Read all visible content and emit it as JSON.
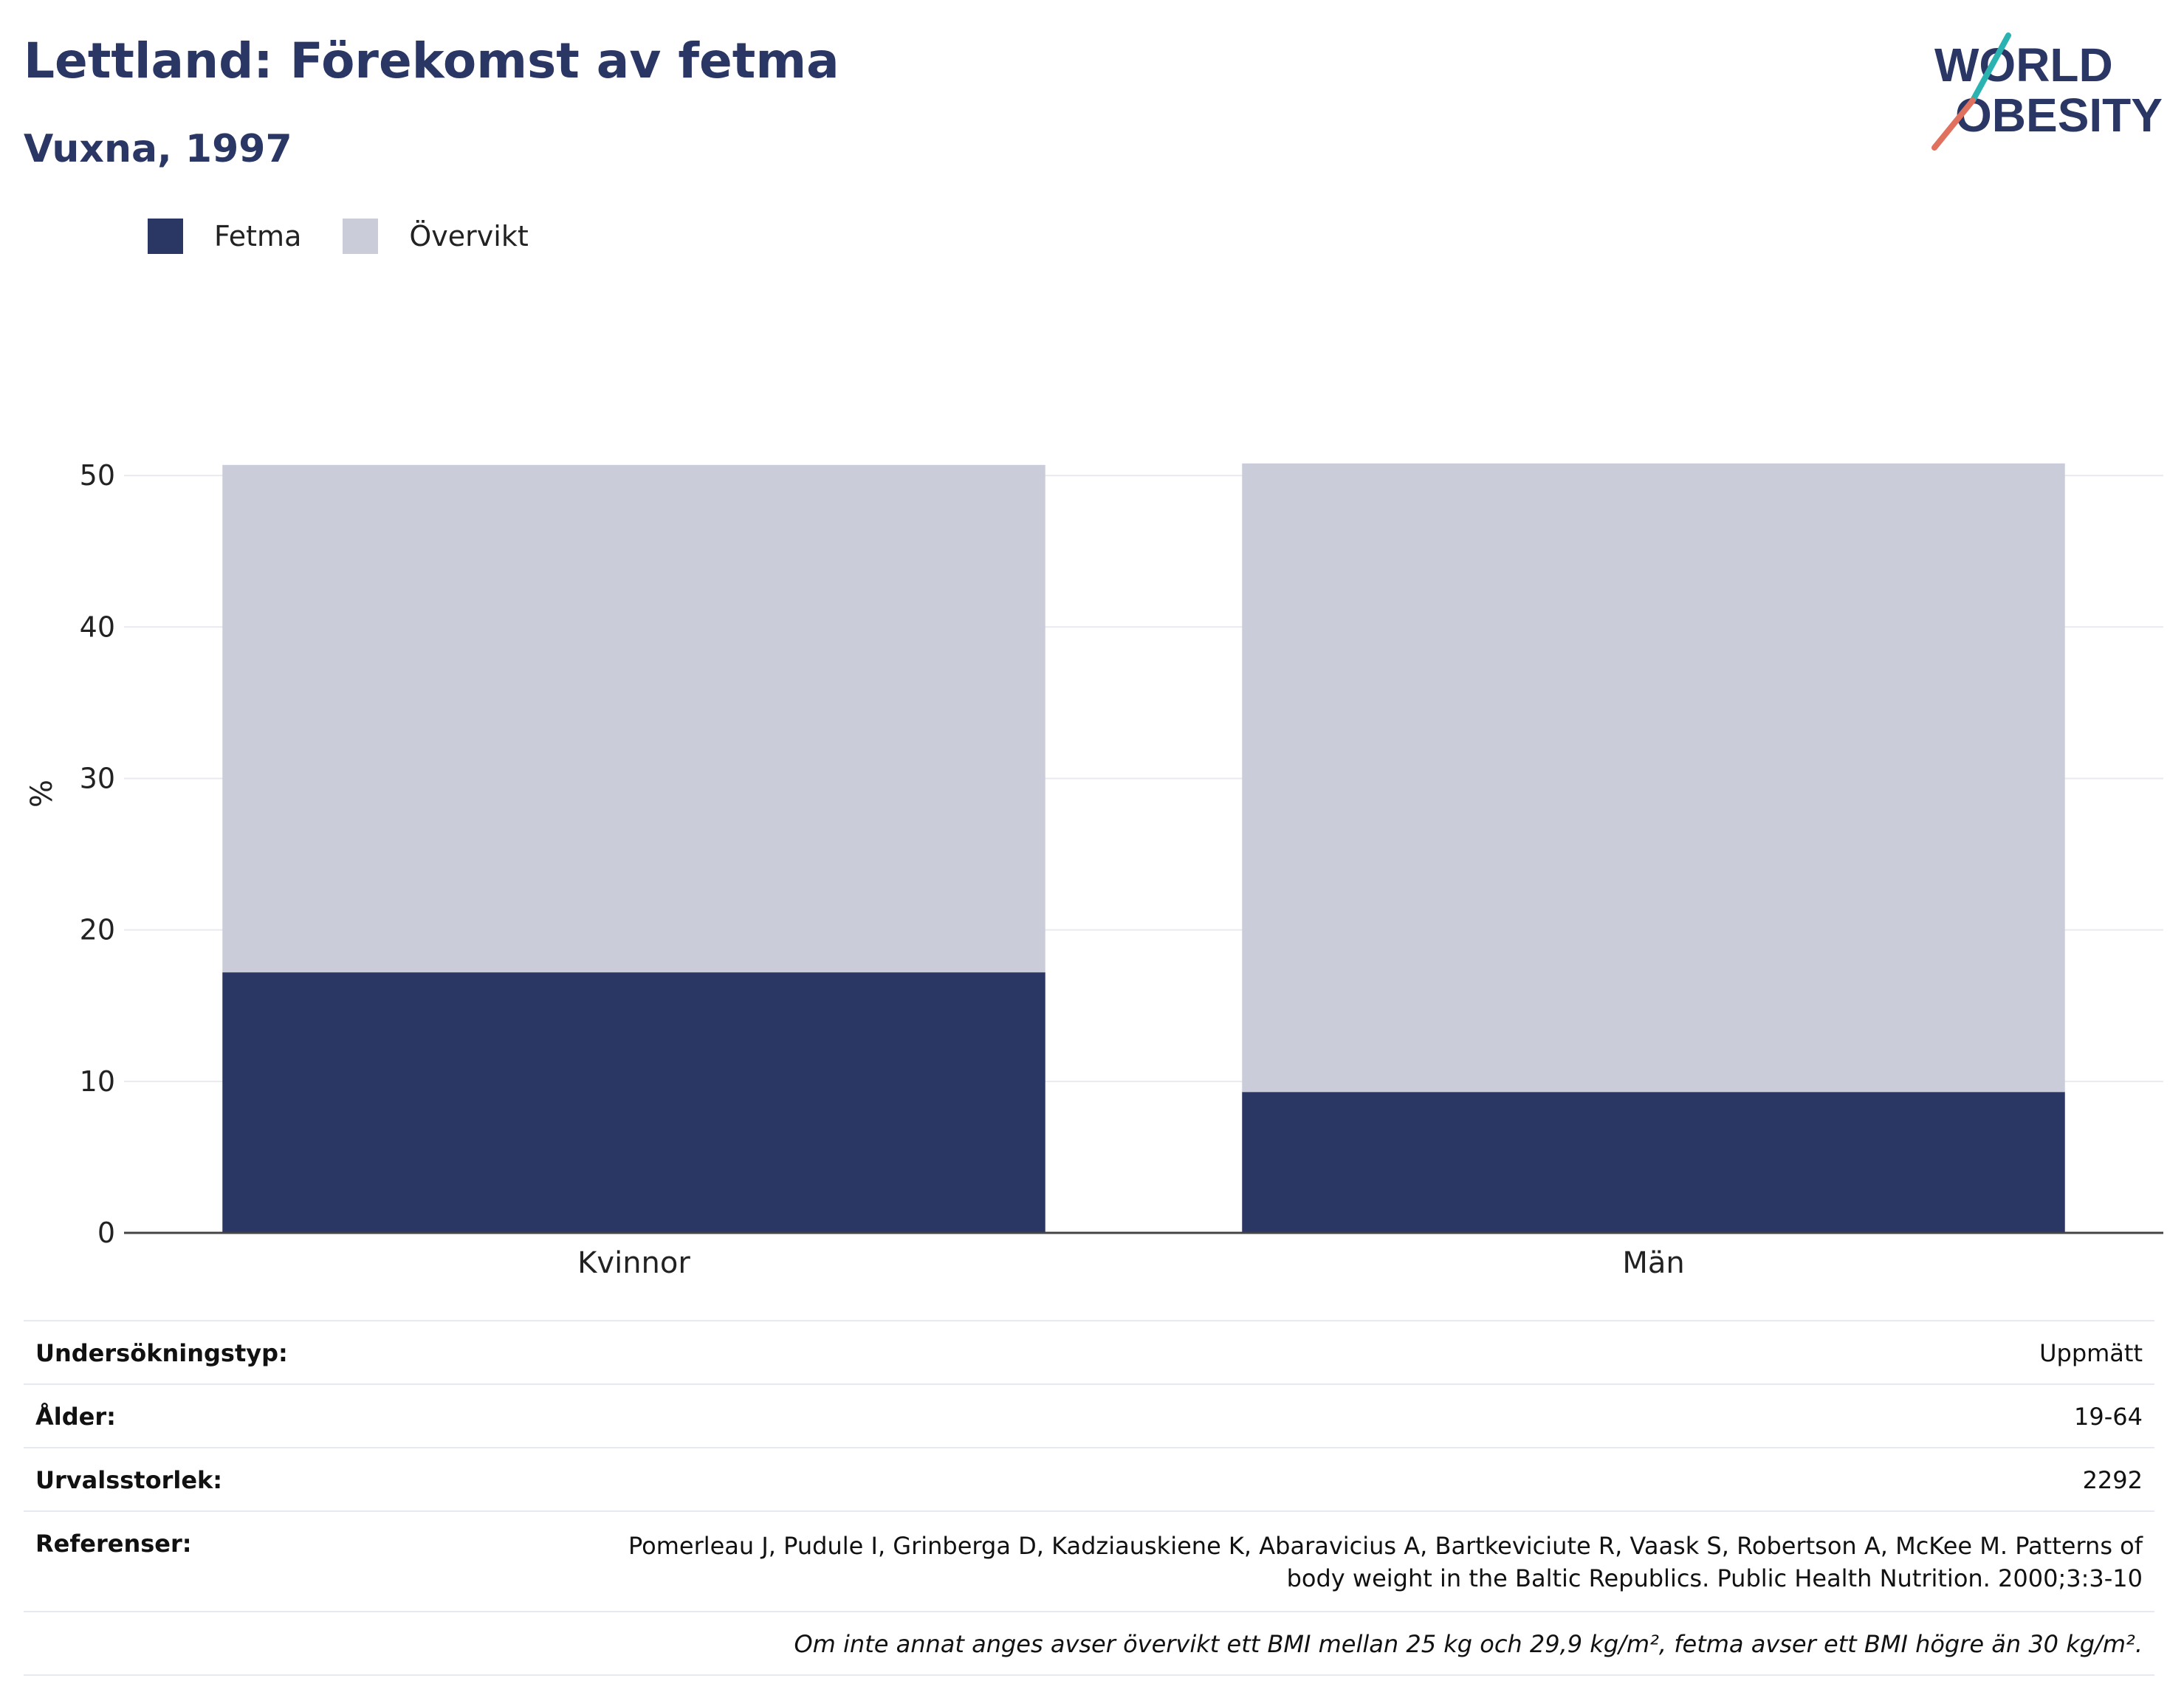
{
  "header": {
    "title": "Lettland: Förekomst av fetma",
    "subtitle": "Vuxna, 1997"
  },
  "logo": {
    "line1": "WORLD",
    "line2": "OBESITY"
  },
  "legend": [
    {
      "label": "Fetma",
      "color": "#2a3664"
    },
    {
      "label": "Övervikt",
      "color": "#cacdd9"
    }
  ],
  "chart_data": {
    "type": "bar",
    "stacked": true,
    "categories": [
      "Kvinnor",
      "Män"
    ],
    "series": [
      {
        "name": "Fetma",
        "color": "#2a3664",
        "values": [
          17.2,
          9.3
        ]
      },
      {
        "name": "Övervikt",
        "color": "#cacdd9",
        "values": [
          33.5,
          41.5
        ]
      }
    ],
    "ylabel": "%",
    "ylim": [
      0,
      50
    ],
    "yticks": [
      0,
      10,
      20,
      30,
      40,
      50
    ],
    "grid": true,
    "legend_position": "top-left"
  },
  "info": {
    "rows": [
      {
        "key": "Undersökningstyp:",
        "value": "Uppmätt"
      },
      {
        "key": "Ålder:",
        "value": "19-64"
      },
      {
        "key": "Urvalsstorlek:",
        "value": "2292"
      },
      {
        "key": "Referenser:",
        "value": "Pomerleau J, Pudule I, Grinberga D, Kadziauskiene K, Abaravicius A, Bartkeviciute R, Vaask S, Robertson A, McKee M. Patterns of body weight in the Baltic Republics. Public Health Nutrition. 2000;3:3-10"
      }
    ],
    "note": "Om inte annat anges avser övervikt ett BMI mellan 25 kg och 29,9 kg/m², fetma avser ett BMI högre än 30 kg/m²."
  }
}
